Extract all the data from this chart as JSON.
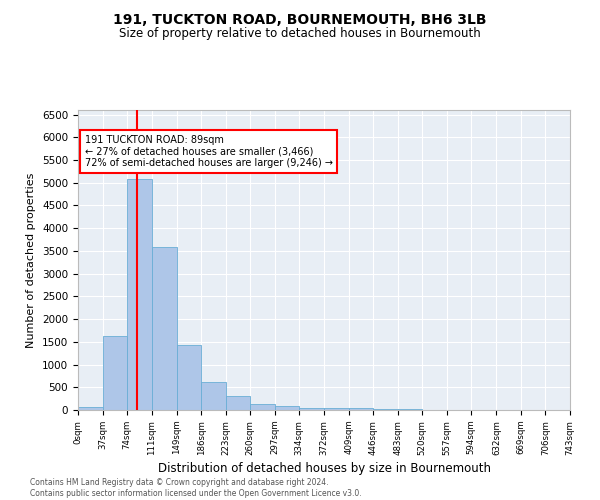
{
  "title": "191, TUCKTON ROAD, BOURNEMOUTH, BH6 3LB",
  "subtitle": "Size of property relative to detached houses in Bournemouth",
  "xlabel": "Distribution of detached houses by size in Bournemouth",
  "ylabel": "Number of detached properties",
  "bar_color": "#aec6e8",
  "bar_edge_color": "#6aaed6",
  "background_color": "#e8eef5",
  "grid_color": "#ffffff",
  "vline_x": 89,
  "vline_color": "red",
  "annotation_text": "191 TUCKTON ROAD: 89sqm\n← 27% of detached houses are smaller (3,466)\n72% of semi-detached houses are larger (9,246) →",
  "annotation_box_color": "white",
  "annotation_border_color": "red",
  "bin_edges": [
    0,
    37,
    74,
    111,
    149,
    186,
    223,
    260,
    297,
    334,
    372,
    409,
    446,
    483,
    520,
    557,
    594,
    632,
    669,
    706,
    743
  ],
  "bar_heights": [
    70,
    1630,
    5080,
    3580,
    1420,
    620,
    310,
    135,
    80,
    50,
    50,
    40,
    20,
    15,
    10,
    5,
    3,
    2,
    1,
    1
  ],
  "ylim": [
    0,
    6600
  ],
  "yticks": [
    0,
    500,
    1000,
    1500,
    2000,
    2500,
    3000,
    3500,
    4000,
    4500,
    5000,
    5500,
    6000,
    6500
  ],
  "footer_text": "Contains HM Land Registry data © Crown copyright and database right 2024.\nContains public sector information licensed under the Open Government Licence v3.0.",
  "tick_labels": [
    "0sqm",
    "37sqm",
    "74sqm",
    "111sqm",
    "149sqm",
    "186sqm",
    "223sqm",
    "260sqm",
    "297sqm",
    "334sqm",
    "372sqm",
    "409sqm",
    "446sqm",
    "483sqm",
    "520sqm",
    "557sqm",
    "594sqm",
    "632sqm",
    "669sqm",
    "706sqm",
    "743sqm"
  ]
}
